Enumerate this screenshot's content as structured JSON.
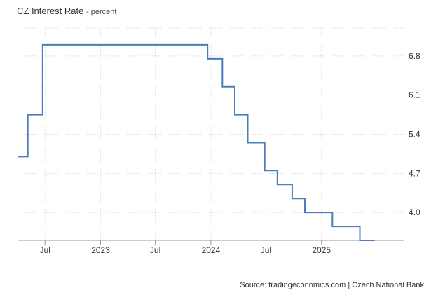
{
  "header": {
    "title": "CZ Interest Rate",
    "subtitle": "- percent"
  },
  "source": "Source: tradingeconomics.com | Czech National Bank",
  "colors": {
    "line": "#4a7ebb",
    "grid": "#d9d9d9",
    "axis": "#999999"
  },
  "chart_data": {
    "type": "line",
    "step": "after",
    "title": "CZ Interest Rate",
    "subtitle": "- percent",
    "xlabel": "",
    "ylabel": "",
    "ylim": [
      3.5,
      7.3
    ],
    "xlim": [
      "2022-04-01",
      "2025-09-30"
    ],
    "grid": true,
    "yticks": [
      {
        "value": 4.0,
        "label": "4.0"
      },
      {
        "value": 4.7,
        "label": "4.7"
      },
      {
        "value": 5.4,
        "label": "5.4"
      },
      {
        "value": 6.1,
        "label": "6.1"
      },
      {
        "value": 6.8,
        "label": "6.8"
      }
    ],
    "xticks": [
      {
        "date": "2022-07-01",
        "label": "Jul"
      },
      {
        "date": "2023-01-01",
        "label": "2023"
      },
      {
        "date": "2023-07-01",
        "label": "Jul"
      },
      {
        "date": "2024-01-01",
        "label": "2024"
      },
      {
        "date": "2024-07-01",
        "label": "Jul"
      },
      {
        "date": "2025-01-01",
        "label": "2025"
      }
    ],
    "series": [
      {
        "x": [
          "2022-04-01",
          "2022-05-05",
          "2022-06-23",
          "2023-12-21",
          "2024-02-08",
          "2024-03-20",
          "2024-05-02",
          "2024-06-27",
          "2024-08-08",
          "2024-09-26",
          "2024-11-07",
          "2025-02-06",
          "2025-05-08",
          "2025-06-26"
        ],
        "values": [
          5.0,
          5.75,
          7.0,
          6.75,
          6.25,
          5.75,
          5.25,
          4.75,
          4.5,
          4.25,
          4.0,
          3.75,
          3.5,
          3.5
        ]
      }
    ]
  }
}
